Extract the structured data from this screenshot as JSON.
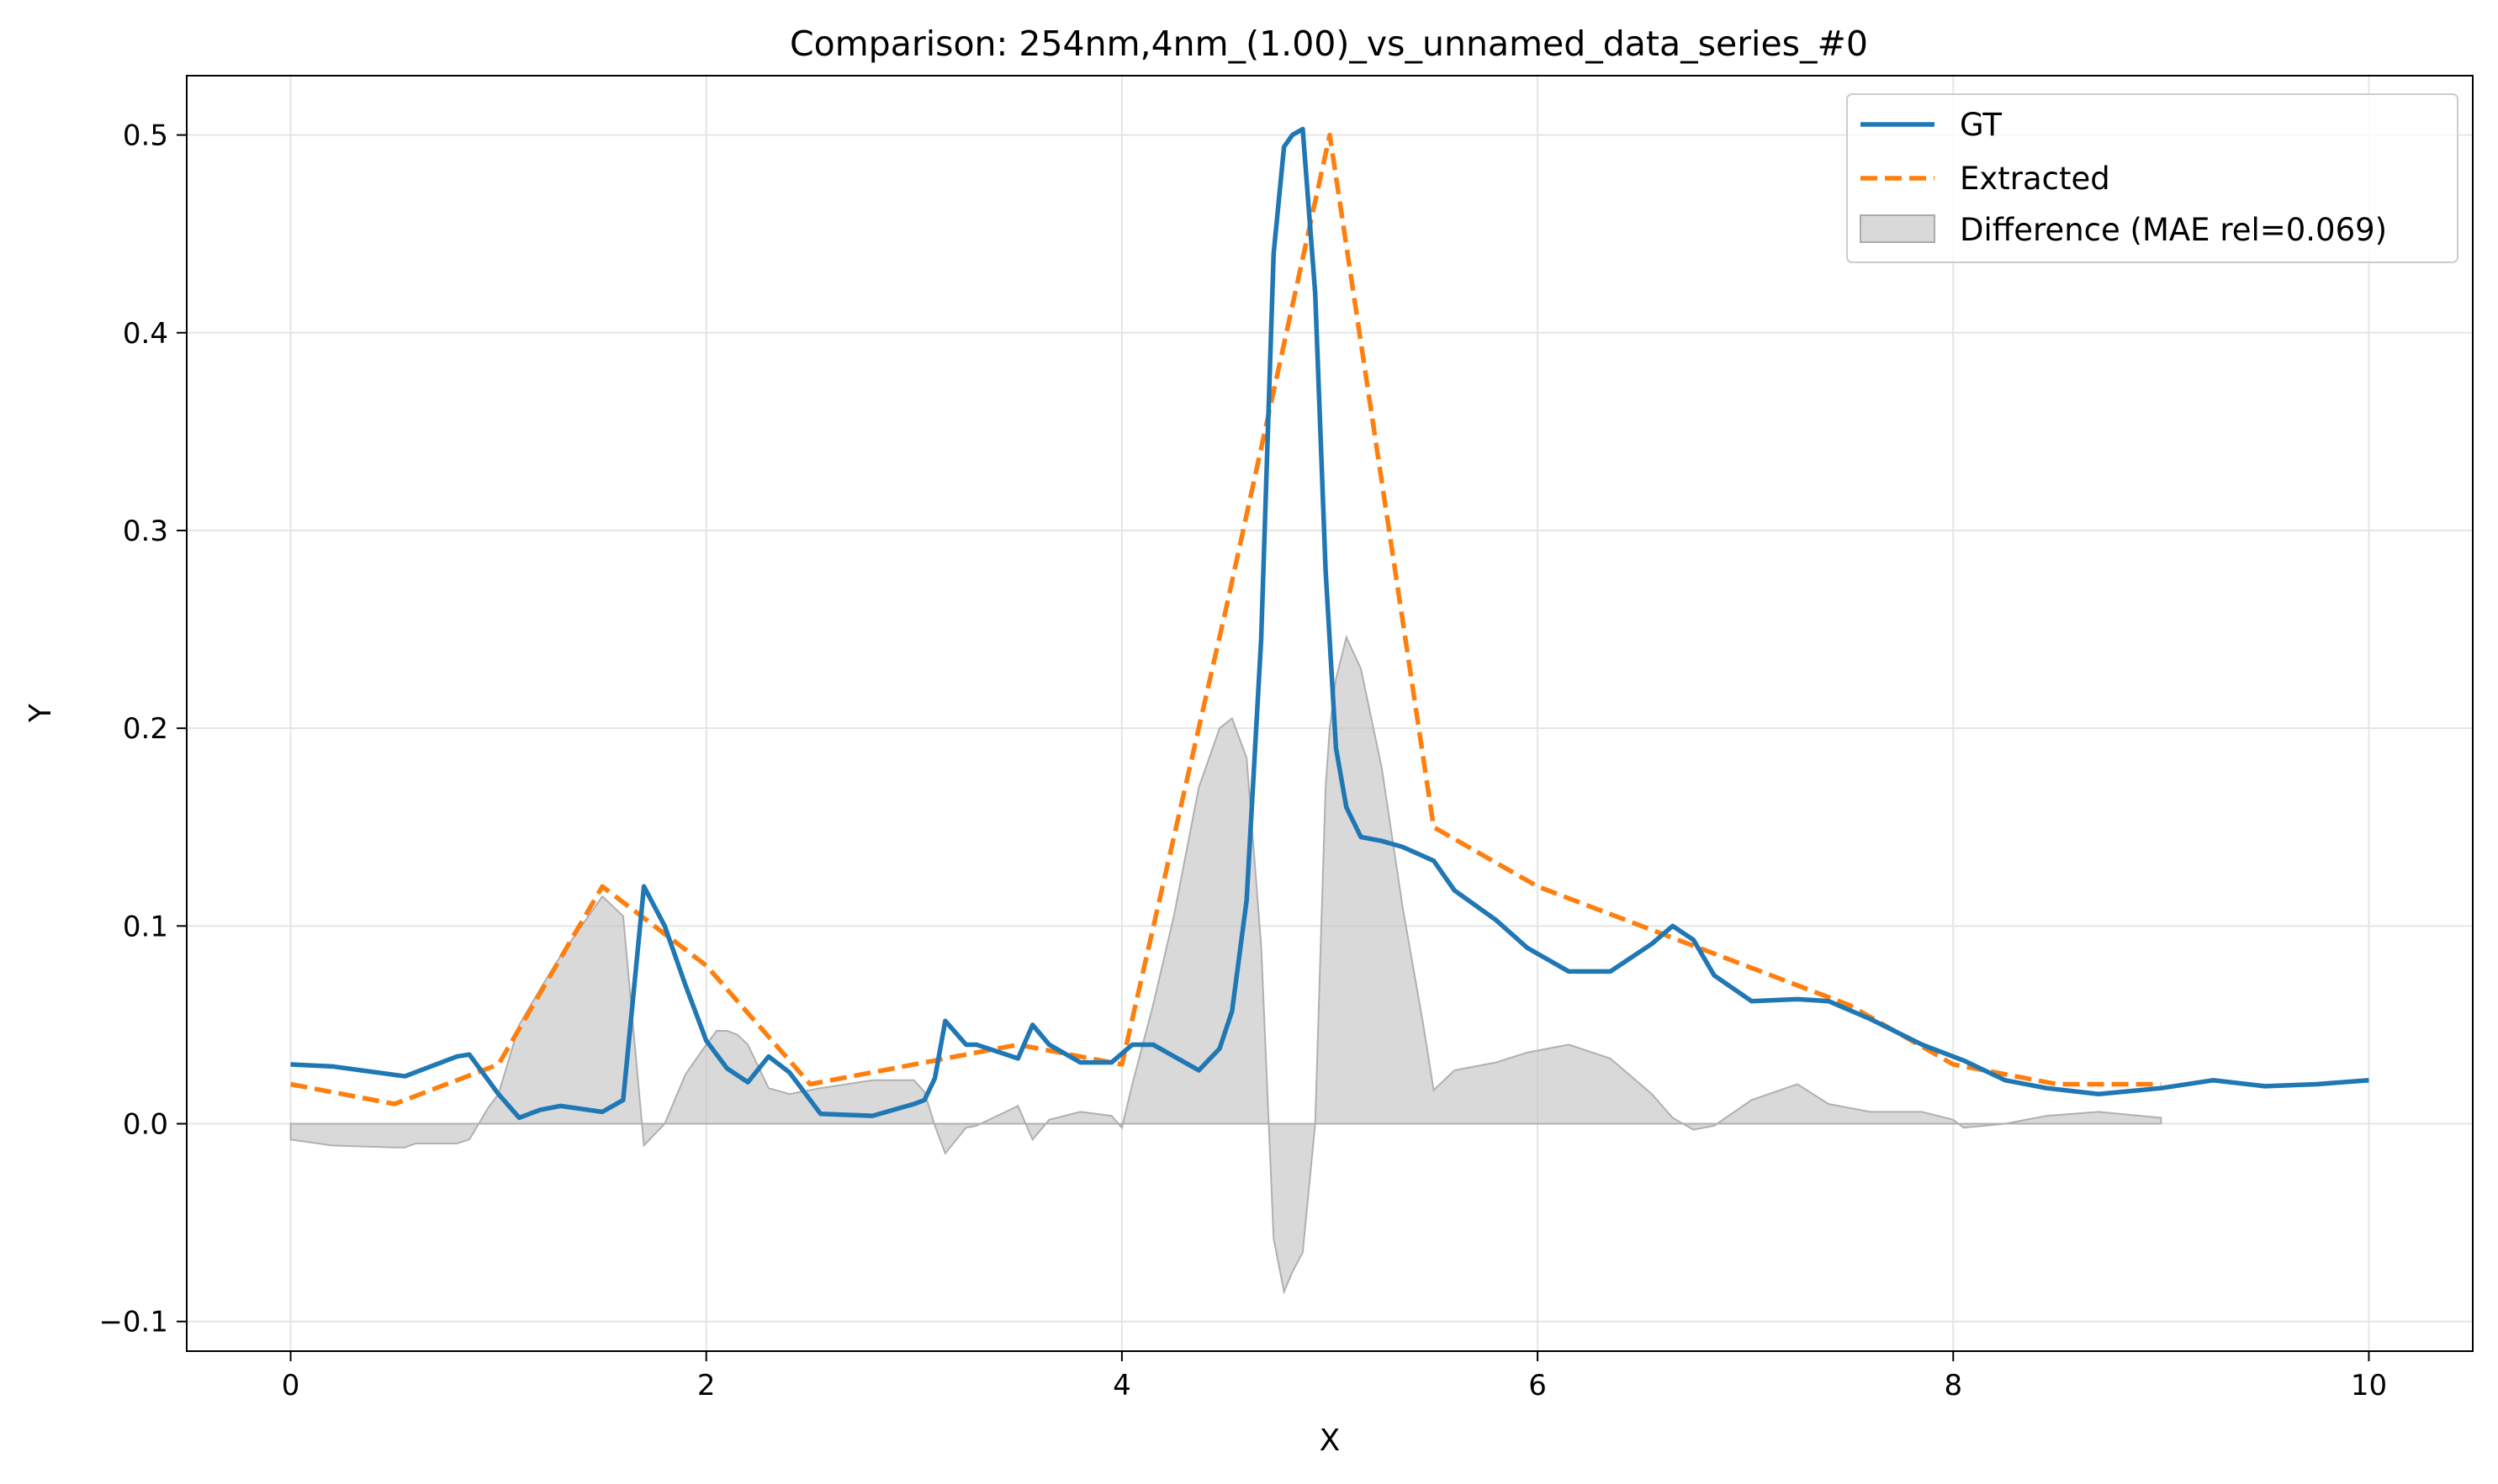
{
  "chart_data": {
    "type": "line",
    "title": "Comparison: 254nm,4nm_(1.00)_vs_unnamed_data_series_#0",
    "xlabel": "X",
    "ylabel": "Y",
    "xlim": [
      -0.5,
      10.5
    ],
    "ylim": [
      -0.115,
      0.53
    ],
    "xticks": [
      0,
      2,
      4,
      6,
      8,
      10
    ],
    "yticks": [
      -0.1,
      0.0,
      0.1,
      0.2,
      0.3,
      0.4,
      0.5
    ],
    "xtick_labels": [
      "0",
      "2",
      "4",
      "6",
      "8",
      "10"
    ],
    "ytick_labels": [
      "−0.1",
      "0.0",
      "0.1",
      "0.2",
      "0.3",
      "0.4",
      "0.5"
    ],
    "grid": true,
    "legend_position": "top-right",
    "series": [
      {
        "name": "GT",
        "style": "solid",
        "color": "#1f77b4",
        "x": [
          0,
          0.2,
          0.55,
          0.8,
          0.86,
          1.0,
          1.1,
          1.2,
          1.3,
          1.5,
          1.6,
          1.7,
          1.8,
          1.9,
          2.0,
          2.1,
          2.2,
          2.3,
          2.4,
          2.55,
          2.8,
          3.0,
          3.05,
          3.1,
          3.15,
          3.25,
          3.3,
          3.5,
          3.57,
          3.65,
          3.8,
          3.95,
          4.05,
          4.15,
          4.37,
          4.47,
          4.53,
          4.6,
          4.67,
          4.73,
          4.78,
          4.82,
          4.87,
          4.93,
          4.98,
          5.03,
          5.08,
          5.15,
          5.25,
          5.35,
          5.5,
          5.6,
          5.8,
          5.95,
          6.15,
          6.35,
          6.55,
          6.65,
          6.75,
          6.85,
          7.03,
          7.25,
          7.4,
          7.6,
          7.85,
          8.05,
          8.25,
          8.45,
          8.7,
          9.0,
          9.25,
          9.5,
          9.75,
          10.0
        ],
        "y": [
          0.03,
          0.029,
          0.024,
          0.034,
          0.035,
          0.015,
          0.003,
          0.007,
          0.009,
          0.006,
          0.012,
          0.12,
          0.1,
          0.07,
          0.042,
          0.028,
          0.021,
          0.034,
          0.026,
          0.005,
          0.004,
          0.01,
          0.012,
          0.023,
          0.052,
          0.04,
          0.04,
          0.033,
          0.05,
          0.04,
          0.031,
          0.031,
          0.04,
          0.04,
          0.027,
          0.038,
          0.057,
          0.113,
          0.245,
          0.44,
          0.494,
          0.5,
          0.503,
          0.42,
          0.28,
          0.19,
          0.16,
          0.145,
          0.143,
          0.14,
          0.133,
          0.118,
          0.103,
          0.089,
          0.077,
          0.077,
          0.091,
          0.1,
          0.093,
          0.075,
          0.062,
          0.063,
          0.062,
          0.053,
          0.04,
          0.032,
          0.022,
          0.018,
          0.015,
          0.018,
          0.022,
          0.019,
          0.02,
          0.022
        ]
      },
      {
        "name": "Extracted",
        "style": "dashed",
        "color": "#ff7f0e",
        "x": [
          0,
          0.5,
          1.0,
          1.5,
          2.0,
          2.5,
          3.0,
          3.5,
          4.0,
          4.5,
          5.0,
          5.5,
          6.0,
          6.5,
          7.0,
          7.5,
          8.0,
          8.5,
          9.0
        ],
        "y": [
          0.02,
          0.01,
          0.03,
          0.12,
          0.08,
          0.02,
          0.03,
          0.04,
          0.03,
          0.26,
          0.5,
          0.15,
          0.12,
          0.1,
          0.08,
          0.06,
          0.03,
          0.02,
          0.02
        ]
      },
      {
        "name": "Difference (MAE rel=0.069)",
        "style": "fill",
        "color": "#bfbfbf",
        "x": [
          0,
          0.2,
          0.5,
          0.55,
          0.6,
          0.8,
          0.86,
          0.95,
          1.0,
          1.1,
          1.2,
          1.3,
          1.5,
          1.6,
          1.7,
          1.8,
          1.9,
          2.0,
          2.05,
          2.1,
          2.15,
          2.2,
          2.3,
          2.4,
          2.55,
          2.8,
          3.0,
          3.05,
          3.1,
          3.15,
          3.25,
          3.3,
          3.5,
          3.57,
          3.65,
          3.8,
          3.95,
          4.0,
          4.05,
          4.15,
          4.25,
          4.37,
          4.47,
          4.53,
          4.6,
          4.67,
          4.73,
          4.78,
          4.82,
          4.87,
          4.93,
          4.98,
          5.0,
          5.03,
          5.08,
          5.15,
          5.25,
          5.35,
          5.45,
          5.5,
          5.6,
          5.8,
          5.95,
          6.15,
          6.35,
          6.55,
          6.65,
          6.75,
          6.85,
          7.03,
          7.25,
          7.4,
          7.6,
          7.85,
          8.0,
          8.05,
          8.25,
          8.45,
          8.7,
          9.0
        ],
        "y": [
          -0.008,
          -0.011,
          -0.012,
          -0.012,
          -0.01,
          -0.01,
          -0.008,
          0.008,
          0.015,
          0.05,
          0.068,
          0.085,
          0.115,
          0.105,
          -0.011,
          0.0,
          0.025,
          0.04,
          0.047,
          0.047,
          0.045,
          0.04,
          0.018,
          0.015,
          0.018,
          0.022,
          0.022,
          0.016,
          -0.001,
          -0.015,
          -0.002,
          -0.001,
          0.009,
          -0.008,
          0.002,
          0.006,
          0.004,
          -0.002,
          0.02,
          0.06,
          0.105,
          0.17,
          0.2,
          0.205,
          0.185,
          0.09,
          -0.058,
          -0.085,
          -0.075,
          -0.065,
          0.0,
          0.17,
          0.2,
          0.225,
          0.246,
          0.23,
          0.18,
          0.11,
          0.05,
          0.017,
          0.027,
          0.031,
          0.036,
          0.04,
          0.033,
          0.015,
          0.003,
          -0.003,
          -0.001,
          0.012,
          0.02,
          0.01,
          0.006,
          0.006,
          0.002,
          -0.002,
          0.0,
          0.004,
          0.006,
          0.003
        ]
      }
    ]
  }
}
